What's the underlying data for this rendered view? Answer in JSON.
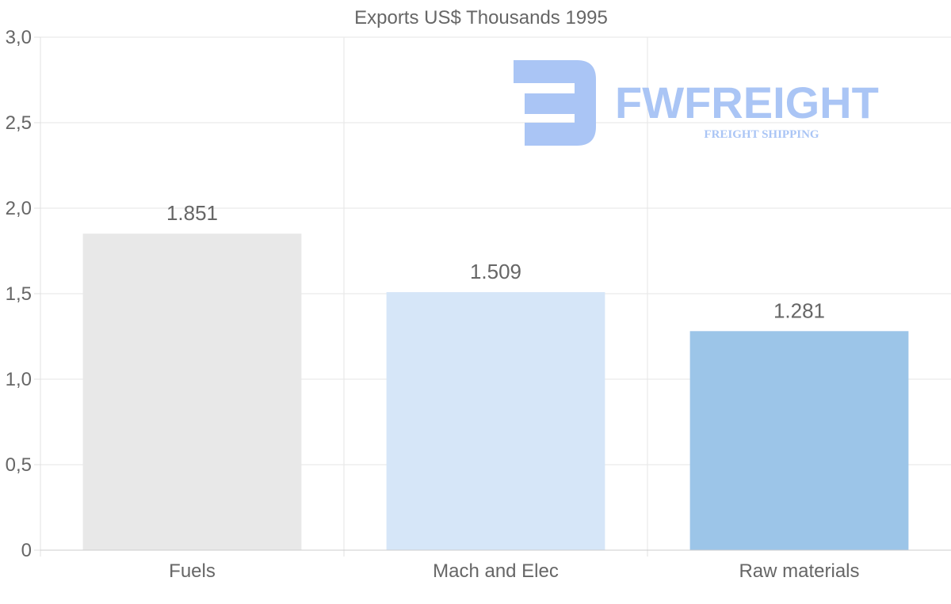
{
  "chart_data": {
    "type": "bar",
    "title": "Exports US$ Thousands 1995",
    "categories": [
      "Fuels",
      "Mach and Elec",
      "Raw materials"
    ],
    "values": [
      1.851,
      1.509,
      1.281
    ],
    "value_labels": [
      "1.851",
      "1.509",
      "1.281"
    ],
    "bar_colors": [
      "#e8e8e8",
      "#d6e6f8",
      "#9cc5e8"
    ],
    "ylim": [
      0,
      3
    ],
    "yticks": [
      0,
      0.5,
      1,
      1.5,
      2,
      2.5,
      3
    ],
    "ytick_labels": [
      "0",
      "0,5",
      "1,0",
      "1,5",
      "2,0",
      "2,5",
      "3,0"
    ],
    "xlabel": "",
    "ylabel": "",
    "grid": true
  },
  "watermark": {
    "brand": "FWFREIGHT",
    "tagline": "FREIGHT SHIPPING",
    "color": "#aac5f5"
  }
}
